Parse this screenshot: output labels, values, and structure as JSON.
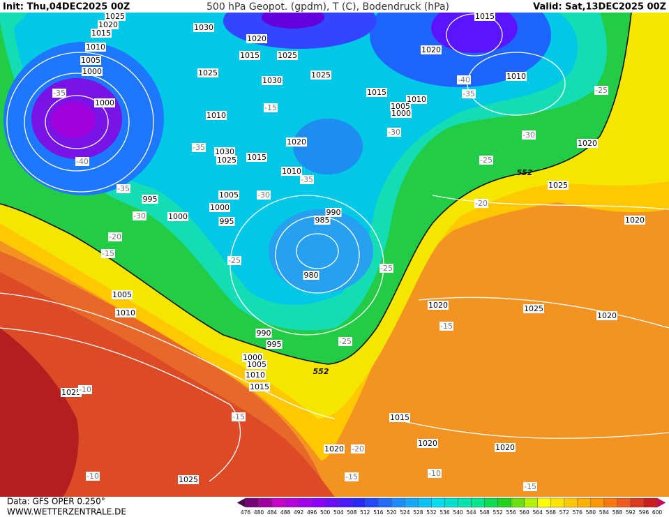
{
  "header": {
    "init": "Init: Thu,04DEC2025 00Z",
    "title": "500 hPa Geopot. (gpdm), T (C), Bodendruck (hPa)",
    "valid": "Valid: Sat,13DEC2025 00Z"
  },
  "map": {
    "labels": [
      "1025",
      "1020",
      "1015",
      "1030",
      "1020",
      "1015",
      "1025",
      "1015",
      "1020",
      "1010",
      "1005",
      "1000",
      "-35",
      "1000",
      "1025",
      "1030",
      "-15",
      "1025",
      "1015",
      "1010",
      "1005",
      "1000",
      "-40",
      "-35",
      "1010",
      "-25",
      "1010",
      "-30",
      "-35",
      "1020",
      "1030",
      "1025",
      "1015",
      "-30",
      "1020",
      "-40",
      "-25",
      "552",
      "1010",
      "-35",
      "1025",
      "-35",
      "995",
      "1005",
      "-30",
      "-20",
      "1000",
      "990",
      "-30",
      "1000",
      "995",
      "985",
      "1020",
      "-20",
      "-15",
      "-25",
      "-25",
      "980",
      "1005",
      "1020",
      "1025",
      "1010",
      "1020",
      "-15",
      "990",
      "-25",
      "995",
      "1000",
      "1005",
      "552",
      "1010",
      "1015",
      "1025",
      "-10",
      "-15",
      "1015",
      "1020",
      "1020",
      "1020",
      "-20",
      "-10",
      "-15",
      "-10",
      "1025",
      "-15"
    ]
  },
  "footer": {
    "source": "Data: GFS OPER 0.250°",
    "site": "WWW.WETTERZENTRALE.DE"
  },
  "legend": {
    "labels": [
      476,
      480,
      484,
      488,
      492,
      496,
      500,
      504,
      508,
      512,
      516,
      520,
      524,
      528,
      532,
      536,
      540,
      544,
      548,
      552,
      556,
      560,
      564,
      568,
      572,
      576,
      580,
      584,
      588,
      592,
      596,
      600
    ]
  }
}
